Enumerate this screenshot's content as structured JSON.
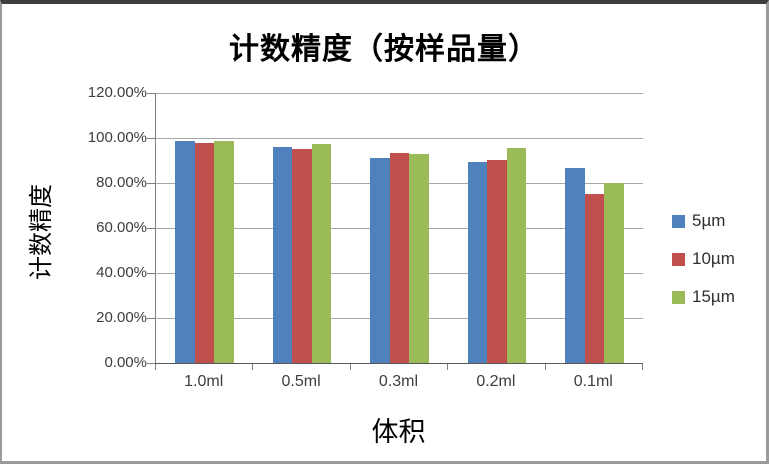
{
  "chart_data": {
    "type": "bar",
    "title": "计数精度（按样品量）",
    "xlabel": "体积",
    "ylabel": "计数精度",
    "categories": [
      "1.0ml",
      "0.5ml",
      "0.3ml",
      "0.2ml",
      "0.1ml"
    ],
    "series": [
      {
        "name": "5µm",
        "color": "#4F81BD",
        "values": [
          98.5,
          96.2,
          91.0,
          89.5,
          86.5
        ]
      },
      {
        "name": "10µm",
        "color": "#C0504D",
        "values": [
          97.8,
          95.2,
          93.2,
          90.2,
          75.0
        ]
      },
      {
        "name": "15µm",
        "color": "#9BBB59",
        "values": [
          98.7,
          97.5,
          93.0,
          95.6,
          79.8
        ]
      }
    ],
    "ylim": [
      0,
      120
    ],
    "ytick_step": 20,
    "ytick_labels": [
      "0.00%",
      "20.00%",
      "40.00%",
      "60.00%",
      "80.00%",
      "100.00%",
      "120.00%"
    ],
    "grid": true,
    "legend_position": "right",
    "bar_gap_in_group": 0
  },
  "style": {
    "gridline_color": "#a8a8a8",
    "axis_color": "#7f7f7f",
    "tick_label_color": "#3d3d3d",
    "background": "#ffffff"
  }
}
